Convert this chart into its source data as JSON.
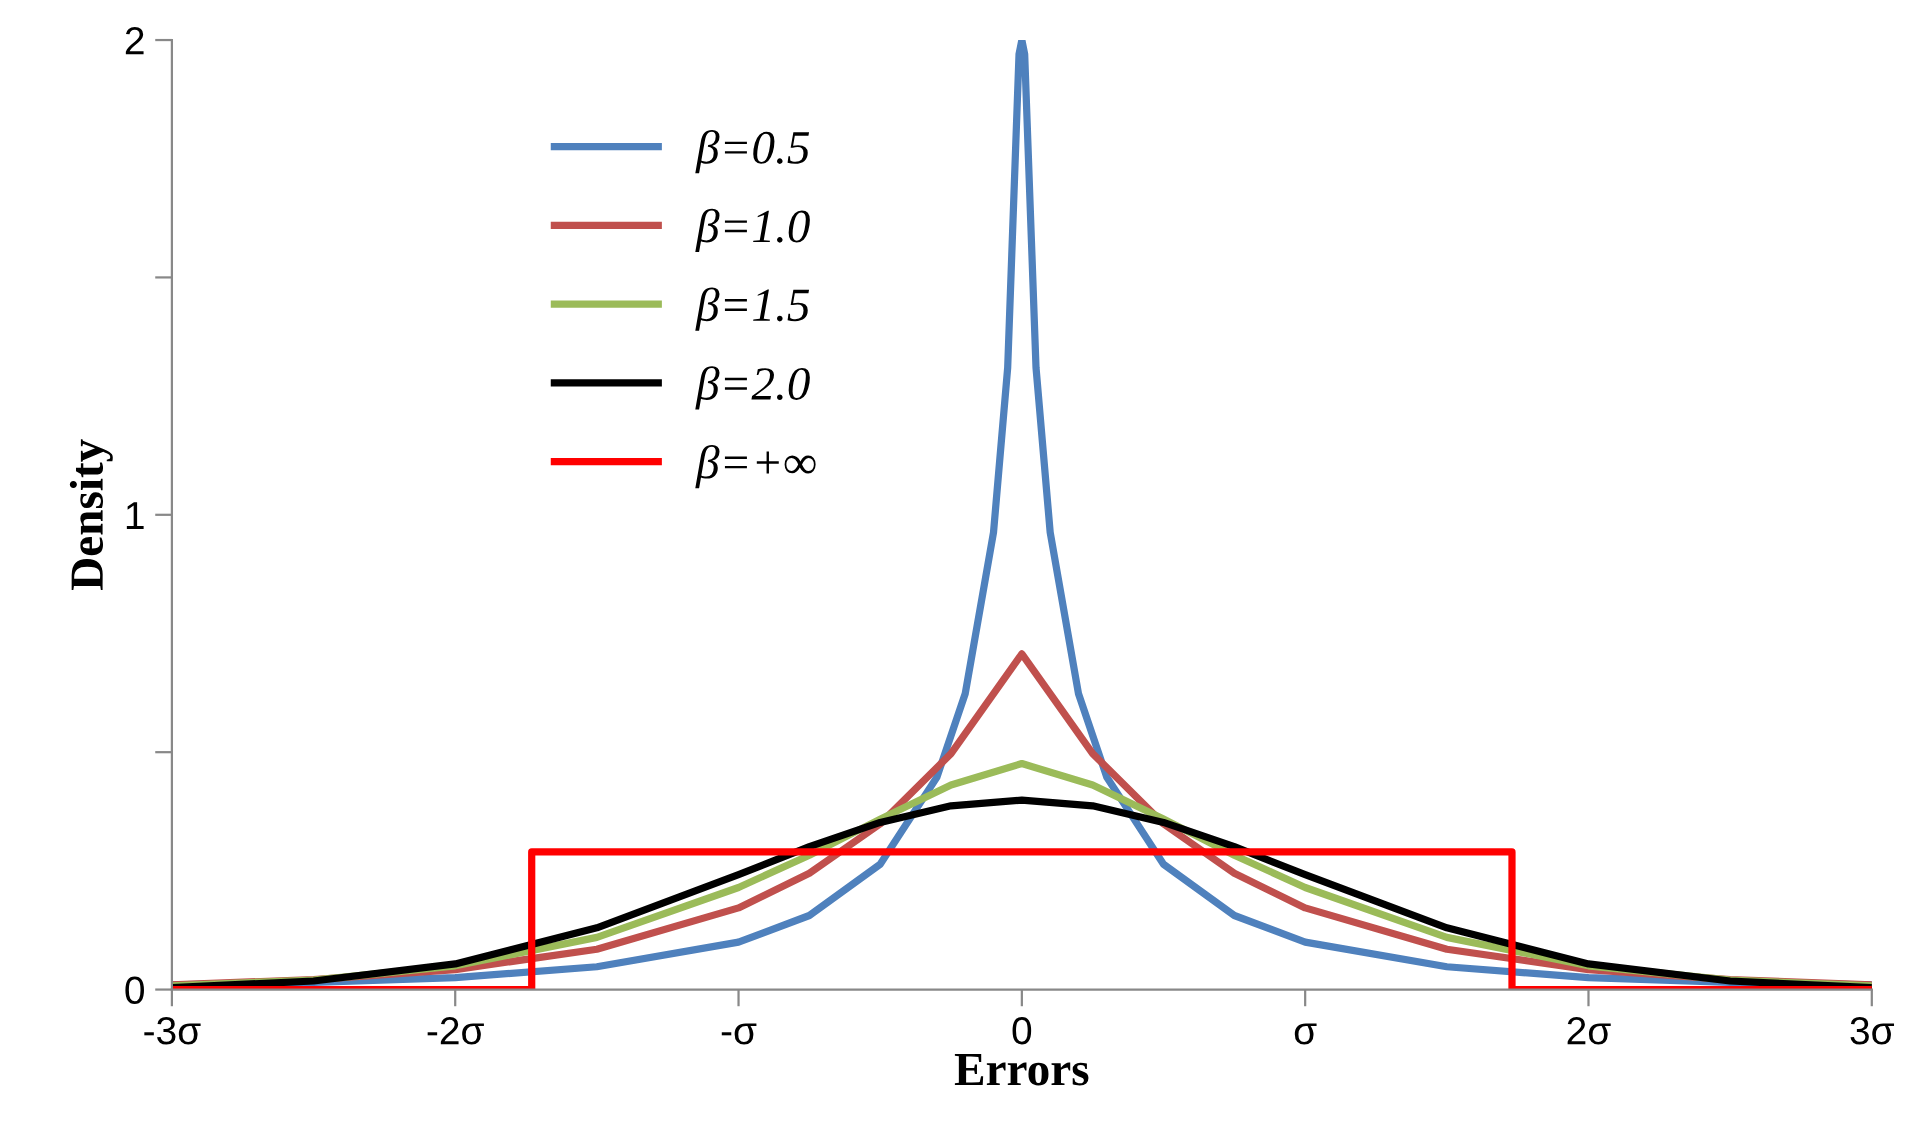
{
  "chart_data": {
    "type": "line",
    "xlabel": "Errors",
    "ylabel": "Density",
    "xlim": [
      -3,
      3
    ],
    "ylim": [
      0,
      2
    ],
    "xticks": [
      {
        "value": -3,
        "label": "-3σ"
      },
      {
        "value": -2,
        "label": "-2σ"
      },
      {
        "value": -1,
        "label": "-σ"
      },
      0,
      {
        "value": 1,
        "label": "σ"
      },
      {
        "value": 2,
        "label": "2σ"
      },
      {
        "value": 3,
        "label": "3σ"
      }
    ],
    "yticks": [
      0,
      {
        "value": 0.5,
        "label": null
      },
      1,
      {
        "value": 1.5,
        "label": null
      },
      2
    ],
    "grid": false,
    "legend": "top left",
    "marker": "none",
    "line_style": "solid",
    "series": [
      {
        "name": "β=0.5",
        "color": "#4f81bd",
        "x": [
          -3,
          -2.5,
          -2,
          -1.5,
          -1,
          -0.75,
          -0.5,
          -0.3,
          -0.2,
          -0.1,
          -0.05,
          -0.01,
          0,
          0.01,
          0.05,
          0.1,
          0.2,
          0.3,
          0.5,
          0.75,
          1,
          1.5,
          2,
          2.5,
          3
        ],
        "values": [
          0.01,
          0.015,
          0.025,
          0.048,
          0.1,
          0.156,
          0.264,
          0.447,
          0.623,
          0.963,
          1.31,
          1.97,
          2,
          1.97,
          1.31,
          0.963,
          0.623,
          0.447,
          0.264,
          0.156,
          0.1,
          0.048,
          0.025,
          0.015,
          0.01
        ]
      },
      {
        "name": "β=1.0",
        "color": "#c0504d",
        "x": [
          -3,
          -2.5,
          -2,
          -1.5,
          -1,
          -0.75,
          -0.5,
          -0.25,
          0,
          0.25,
          0.5,
          0.75,
          1,
          1.5,
          2,
          2.5,
          3
        ],
        "values": [
          0.01,
          0.021,
          0.042,
          0.085,
          0.172,
          0.245,
          0.349,
          0.497,
          0.707,
          0.497,
          0.349,
          0.245,
          0.172,
          0.085,
          0.042,
          0.021,
          0.01
        ]
      },
      {
        "name": "β=1.5",
        "color": "#9bbb59",
        "x": [
          -3,
          -2.5,
          -2,
          -1.5,
          -1,
          -0.75,
          -0.5,
          -0.25,
          0,
          0.25,
          0.5,
          0.75,
          1,
          1.5,
          2,
          2.5,
          3
        ],
        "values": [
          0.008,
          0.02,
          0.05,
          0.11,
          0.215,
          0.283,
          0.359,
          0.431,
          0.476,
          0.431,
          0.359,
          0.283,
          0.215,
          0.11,
          0.05,
          0.02,
          0.008
        ]
      },
      {
        "name": "β=2.0",
        "color": "#000000",
        "x": [
          -3,
          -2.5,
          -2,
          -1.5,
          -1,
          -0.75,
          -0.5,
          -0.25,
          0,
          0.25,
          0.5,
          0.75,
          1,
          1.5,
          2,
          2.5,
          3
        ],
        "values": [
          0.004,
          0.018,
          0.054,
          0.13,
          0.242,
          0.301,
          0.352,
          0.387,
          0.399,
          0.387,
          0.352,
          0.301,
          0.242,
          0.13,
          0.054,
          0.018,
          0.004
        ]
      },
      {
        "name": "β=+∞",
        "color": "#ff0000",
        "x": [
          -3,
          -1.73,
          -1.73,
          1.73,
          1.73,
          3
        ],
        "values": [
          0,
          0,
          0.29,
          0.29,
          0,
          0
        ]
      }
    ]
  }
}
